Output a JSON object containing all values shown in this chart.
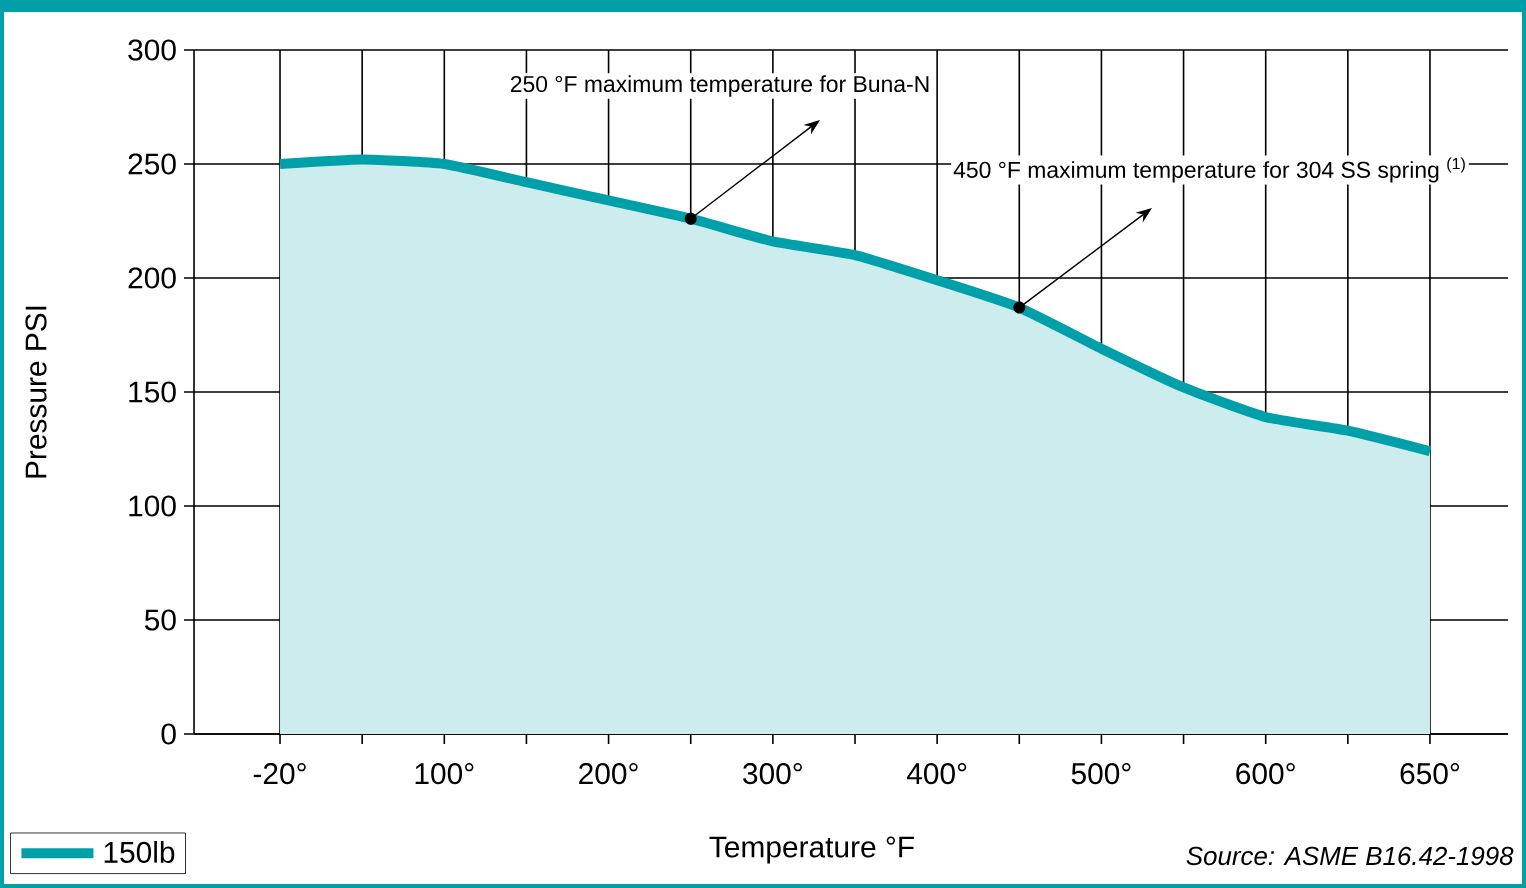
{
  "chart_data": {
    "type": "area",
    "categories": [
      "-20°",
      null,
      "100°",
      null,
      "200°",
      null,
      "300°",
      null,
      "400°",
      null,
      "500°",
      null,
      "600°",
      null,
      "650°"
    ],
    "series": [
      {
        "name": "150lb",
        "color": "#00a0aa",
        "values": [
          250,
          252,
          250,
          242,
          234,
          226,
          216,
          210,
          199,
          187,
          169,
          152,
          139,
          133,
          124
        ]
      }
    ],
    "xlabel": "Temperature °F",
    "ylabel": "Pressure PSI",
    "ylim": [
      0,
      300
    ],
    "yticks": [
      0,
      50,
      100,
      150,
      200,
      250,
      300
    ],
    "grid": true,
    "legend": "bottom left",
    "annotations": [
      "250 °F maximum temperature for Buna-N",
      "450 °F maximum temperature for 304 SS spring $^{(1)}$",
      "*Source: ASME B16.42-1998*"
    ]
  }
}
